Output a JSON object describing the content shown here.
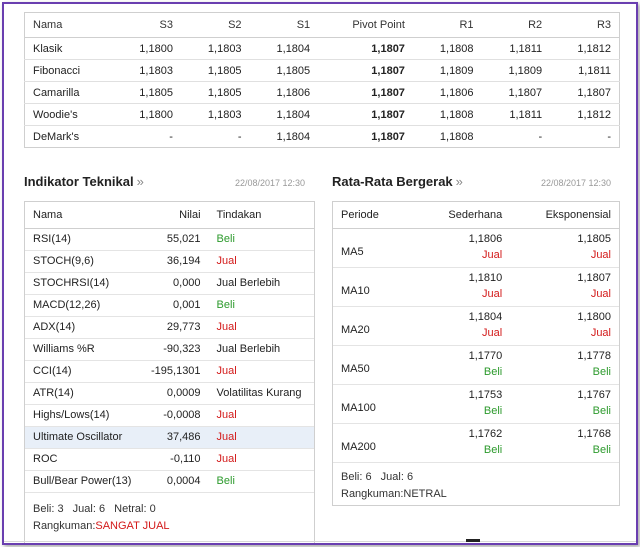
{
  "pivot": {
    "headers": [
      "Nama",
      "S3",
      "S2",
      "S1",
      "Pivot Point",
      "R1",
      "R2",
      "R3"
    ],
    "rows": [
      [
        "Klasik",
        "1,1800",
        "1,1803",
        "1,1804",
        "1,1807",
        "1,1808",
        "1,1811",
        "1,1812"
      ],
      [
        "Fibonacci",
        "1,1803",
        "1,1805",
        "1,1805",
        "1,1807",
        "1,1809",
        "1,1809",
        "1,1811"
      ],
      [
        "Camarilla",
        "1,1805",
        "1,1805",
        "1,1806",
        "1,1807",
        "1,1806",
        "1,1807",
        "1,1807"
      ],
      [
        "Woodie's",
        "1,1800",
        "1,1803",
        "1,1804",
        "1,1807",
        "1,1808",
        "1,1811",
        "1,1812"
      ],
      [
        "DeMark's",
        "-",
        "-",
        "1,1804",
        "1,1807",
        "1,1808",
        "-",
        "-"
      ]
    ]
  },
  "indicators": {
    "title": "Indikator Teknikal",
    "arrow": "»",
    "date": "22/08/2017 12:30",
    "headers": {
      "name": "Nama",
      "value": "Nilai",
      "action": "Tindakan"
    },
    "rows": [
      {
        "name": "RSI(14)",
        "value": "55,021",
        "action": "Beli",
        "kind": "beli"
      },
      {
        "name": "STOCH(9,6)",
        "value": "36,194",
        "action": "Jual",
        "kind": "jual"
      },
      {
        "name": "STOCHRSI(14)",
        "value": "0,000",
        "action": "Jual Berlebih",
        "kind": "neutral"
      },
      {
        "name": "MACD(12,26)",
        "value": "0,001",
        "action": "Beli",
        "kind": "beli"
      },
      {
        "name": "ADX(14)",
        "value": "29,773",
        "action": "Jual",
        "kind": "jual"
      },
      {
        "name": "Williams %R",
        "value": "-90,323",
        "action": "Jual Berlebih",
        "kind": "neutral"
      },
      {
        "name": "CCI(14)",
        "value": "-195,1301",
        "action": "Jual",
        "kind": "jual"
      },
      {
        "name": "ATR(14)",
        "value": "0,0009",
        "action": "Volatilitas Kurang",
        "kind": "neutral"
      },
      {
        "name": "Highs/Lows(14)",
        "value": "-0,0008",
        "action": "Jual",
        "kind": "jual"
      },
      {
        "name": "Ultimate Oscillator",
        "value": "37,486",
        "action": "Jual",
        "kind": "jual"
      },
      {
        "name": "ROC",
        "value": "-0,110",
        "action": "Jual",
        "kind": "jual"
      },
      {
        "name": "Bull/Bear Power(13)",
        "value": "0,0004",
        "action": "Beli",
        "kind": "beli"
      }
    ],
    "highlight_row": 9,
    "summary": {
      "beli_label": "Beli:",
      "beli": "3",
      "jual_label": "Jual:",
      "jual": "6",
      "netral_label": "Netral:",
      "netral": "0",
      "rating_label": "Rangkuman:",
      "rating": "SANGAT JUAL"
    }
  },
  "moving_averages": {
    "title": "Rata-Rata Bergerak",
    "arrow": "»",
    "date": "22/08/2017 12:30",
    "headers": {
      "period": "Periode",
      "simple": "Sederhana",
      "exponential": "Eksponensial"
    },
    "rows": [
      {
        "period": "MA5",
        "simple": "1,1806",
        "simple_action": "Jual",
        "simple_kind": "jual",
        "exp": "1,1805",
        "exp_action": "Jual",
        "exp_kind": "jual"
      },
      {
        "period": "MA10",
        "simple": "1,1810",
        "simple_action": "Jual",
        "simple_kind": "jual",
        "exp": "1,1807",
        "exp_action": "Jual",
        "exp_kind": "jual"
      },
      {
        "period": "MA20",
        "simple": "1,1804",
        "simple_action": "Jual",
        "simple_kind": "jual",
        "exp": "1,1800",
        "exp_action": "Jual",
        "exp_kind": "jual"
      },
      {
        "period": "MA50",
        "simple": "1,1770",
        "simple_action": "Beli",
        "simple_kind": "beli",
        "exp": "1,1778",
        "exp_action": "Beli",
        "exp_kind": "beli"
      },
      {
        "period": "MA100",
        "simple": "1,1753",
        "simple_action": "Beli",
        "simple_kind": "beli",
        "exp": "1,1767",
        "exp_action": "Beli",
        "exp_kind": "beli"
      },
      {
        "period": "MA200",
        "simple": "1,1762",
        "simple_action": "Beli",
        "simple_kind": "beli",
        "exp": "1,1768",
        "exp_action": "Beli",
        "exp_kind": "beli"
      }
    ],
    "summary": {
      "beli_label": "Beli:",
      "beli": "6",
      "jual_label": "Jual:",
      "jual": "6",
      "rating_label": "Rangkuman:",
      "rating": "NETRAL"
    }
  },
  "colors": {
    "buy": "#2c9a2c",
    "sell": "#d31a1a",
    "frame": "#6a3fb0",
    "highlight": "#e8eff8"
  }
}
